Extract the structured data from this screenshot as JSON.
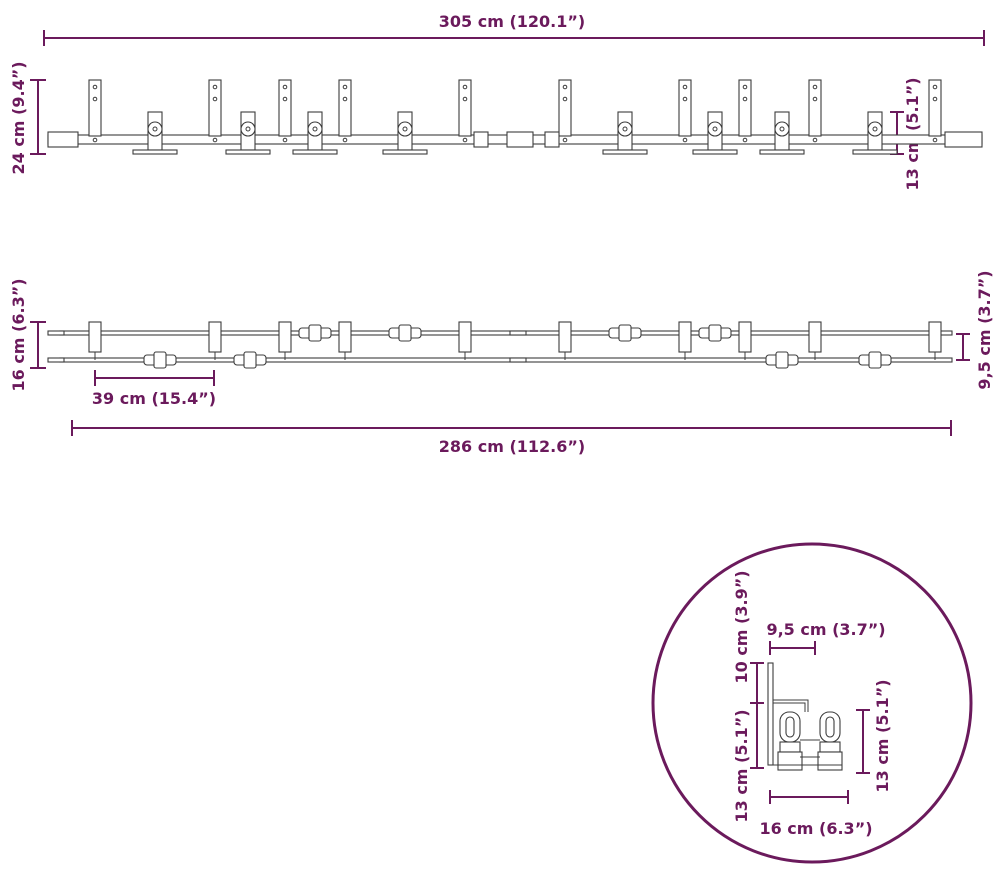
{
  "accent_color": "#6b1a5c",
  "line_color": "#3c3c3c",
  "front_view": {
    "total_length_label": "305 cm (120.1”)",
    "height_label": "24 cm (9.4”)",
    "roller_height_label": "13 cm (5.1”)"
  },
  "top_view": {
    "total_length_label": "286 cm (112.6”)",
    "depth_label": "16 cm (6.3”)",
    "spacing_label": "39 cm (15.4”)",
    "offset_label": "9,5 cm (3.7”)"
  },
  "detail_view": {
    "offset_label": "9,5 cm (3.7”)",
    "bracket_label": "10 cm (3.9”)",
    "left_height_label": "13 cm (5.1”)",
    "right_height_label": "13 cm (5.1”)",
    "width_label": "16 cm (6.3”)"
  }
}
